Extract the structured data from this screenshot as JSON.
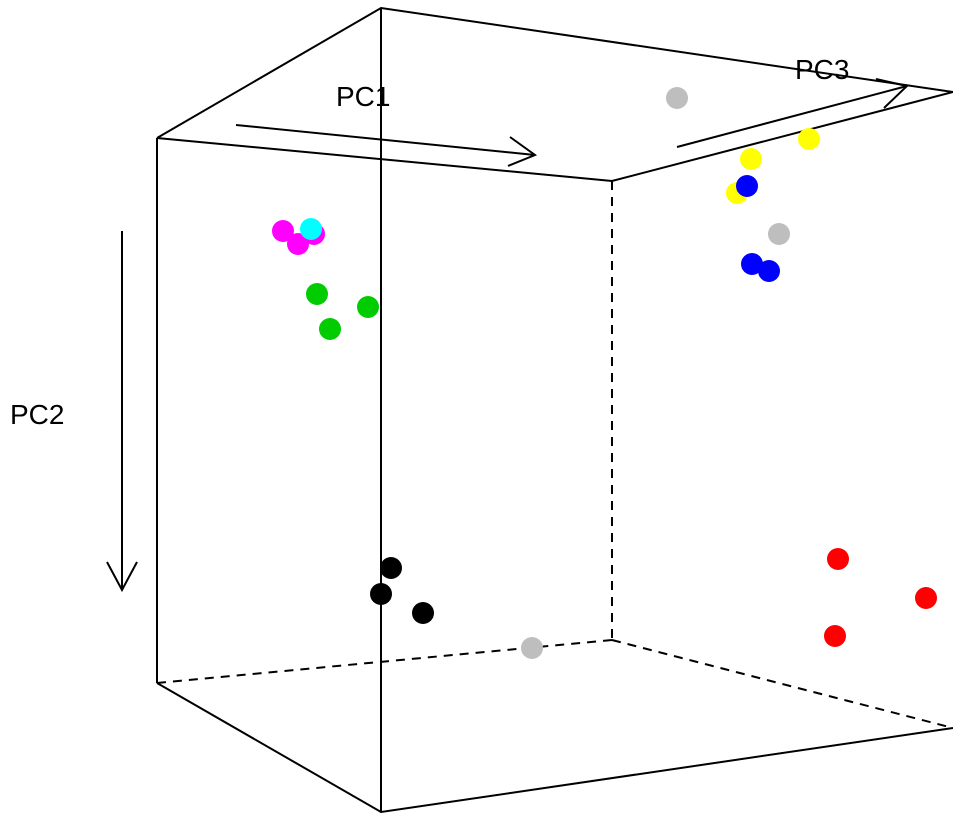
{
  "chart_data": {
    "type": "scatter",
    "projection": "3d-pca",
    "title": "",
    "axes": {
      "pc1": {
        "label": "PC1"
      },
      "pc2": {
        "label": "PC2"
      },
      "pc3": {
        "label": "PC3"
      }
    },
    "grid": false,
    "legend": "none",
    "groups": [
      {
        "color": "#ff00ff",
        "points": [
          [
            283,
            231
          ],
          [
            298,
            244
          ],
          [
            314,
            234
          ]
        ]
      },
      {
        "color": "#00ffff",
        "points": [
          [
            311,
            229
          ]
        ]
      },
      {
        "color": "#00cc00",
        "points": [
          [
            317,
            294
          ],
          [
            368,
            307
          ],
          [
            330,
            329
          ]
        ]
      },
      {
        "color": "#000000",
        "points": [
          [
            391,
            568
          ],
          [
            381,
            594
          ],
          [
            423,
            613
          ]
        ]
      },
      {
        "color": "#bebebe",
        "points": [
          [
            677,
            98
          ],
          [
            779,
            234
          ],
          [
            532,
            648
          ]
        ]
      },
      {
        "color": "#ffff00",
        "points": [
          [
            809,
            139
          ],
          [
            751,
            159
          ],
          [
            737,
            193
          ]
        ]
      },
      {
        "color": "#0000ff",
        "points": [
          [
            747,
            186
          ],
          [
            752,
            264
          ],
          [
            769,
            271
          ]
        ]
      },
      {
        "color": "#ff0000",
        "points": [
          [
            838,
            559
          ],
          [
            926,
            598
          ],
          [
            835,
            636
          ]
        ]
      }
    ]
  }
}
